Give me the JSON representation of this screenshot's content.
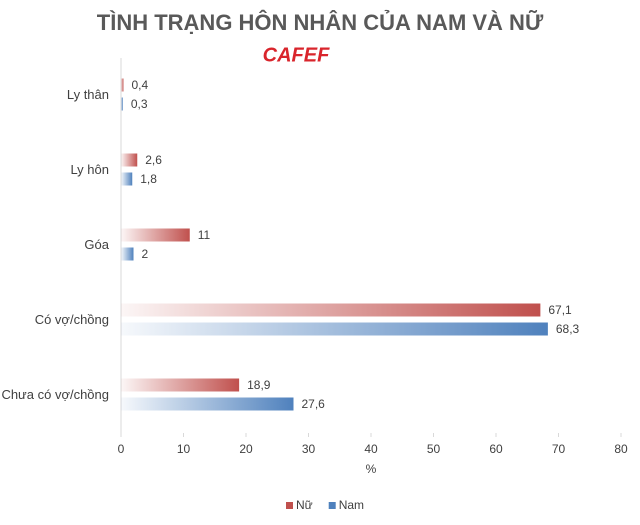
{
  "chart_data": {
    "type": "hbar",
    "title": "TÌNH TRẠNG HÔN NHÂN CỦA NAM VÀ NỮ",
    "logo": "CAFEF",
    "categories": [
      "Ly thân",
      "Ly hôn",
      "Góa",
      "Có vợ/chồng",
      "Chưa có vợ/chồng"
    ],
    "series": [
      {
        "name": "Nữ",
        "color": "#c0504d",
        "values": [
          0.4,
          2.6,
          11,
          67.1,
          18.9
        ],
        "value_labels": [
          "0,4",
          "2,6",
          "11",
          "67,1",
          "18,9"
        ]
      },
      {
        "name": "Nam",
        "color": "#4f81bd",
        "values": [
          0.3,
          1.8,
          2,
          68.3,
          27.6
        ],
        "value_labels": [
          "0,3",
          "1,8",
          "2",
          "68,3",
          "27,6"
        ]
      }
    ],
    "xlim": [
      0,
      80
    ],
    "xticks": [
      0,
      10,
      20,
      30,
      40,
      50,
      60,
      70,
      80
    ],
    "xlabel": "%",
    "legend": "bottom"
  }
}
